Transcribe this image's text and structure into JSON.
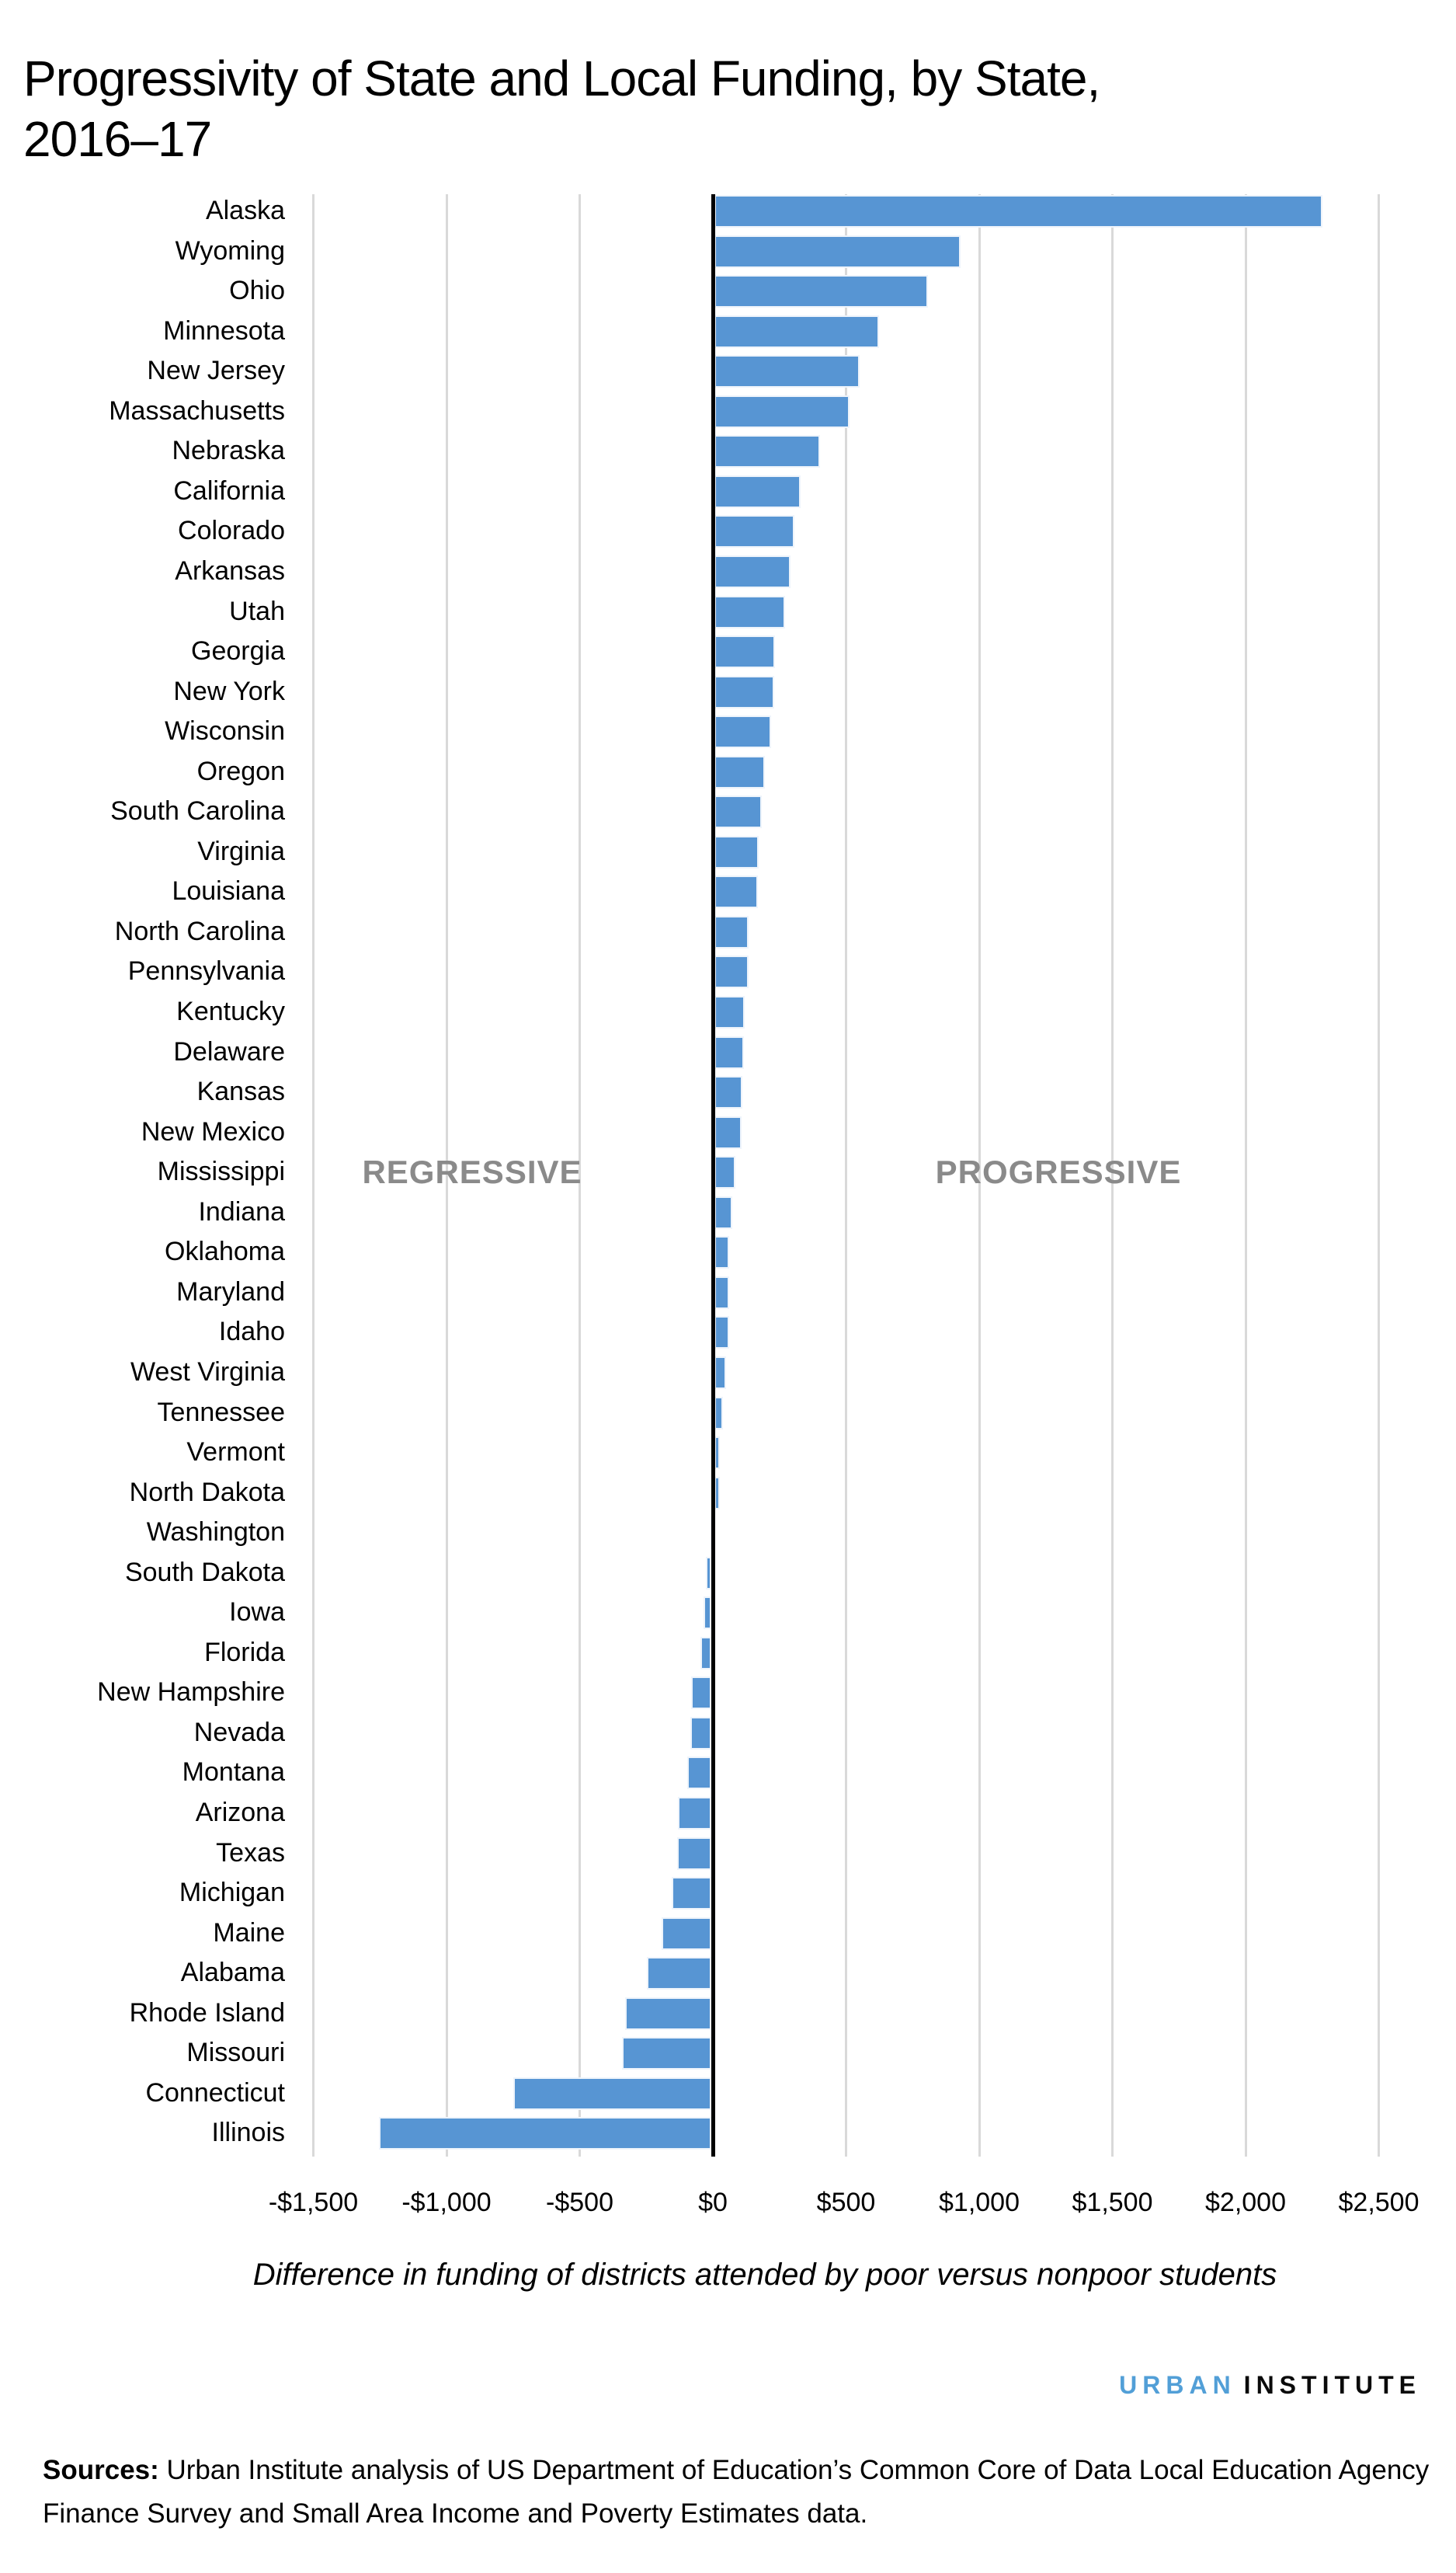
{
  "title": {
    "line1": "Progressivity of State and Local Funding, by State,",
    "line2": "2016–17"
  },
  "region_labels": {
    "regressive": "REGRESSIVE",
    "progressive": "PROGRESSIVE"
  },
  "chart_data": {
    "type": "bar",
    "orientation": "horizontal",
    "title": "Progressivity of State and Local Funding, by State, 2016–17",
    "xlabel": "Difference in funding of districts attended by poor versus nonpoor students",
    "ylabel": "",
    "xlim": [
      -1590,
      2760
    ],
    "grid": true,
    "bar_color": "#5795d3",
    "gridline_color": "#d9d9d9",
    "zero_axis_color": "#000000",
    "x_ticks": [
      {
        "value": -1500,
        "label": "-$1,500"
      },
      {
        "value": -1000,
        "label": "-$1,000"
      },
      {
        "value": -500,
        "label": "-$500"
      },
      {
        "value": 0,
        "label": "$0"
      },
      {
        "value": 500,
        "label": "$500"
      },
      {
        "value": 1000,
        "label": "$1,000"
      },
      {
        "value": 1500,
        "label": "$1,500"
      },
      {
        "value": 2000,
        "label": "$2,000"
      },
      {
        "value": 2500,
        "label": "$2,500"
      }
    ],
    "categories": [
      "Alaska",
      "Wyoming",
      "Ohio",
      "Minnesota",
      "New Jersey",
      "Massachusetts",
      "Nebraska",
      "California",
      "Colorado",
      "Arkansas",
      "Utah",
      "Georgia",
      "New York",
      "Wisconsin",
      "Oregon",
      "South Carolina",
      "Virginia",
      "Louisiana",
      "North Carolina",
      "Pennsylvania",
      "Kentucky",
      "Delaware",
      "Kansas",
      "New Mexico",
      "Mississippi",
      "Indiana",
      "Oklahoma",
      "Maryland",
      "Idaho",
      "West Virginia",
      "Tennessee",
      "Vermont",
      "North Dakota",
      "Washington",
      "South Dakota",
      "Iowa",
      "Florida",
      "New Hampshire",
      "Nevada",
      "Montana",
      "Arizona",
      "Texas",
      "Michigan",
      "Maine",
      "Alabama",
      "Rhode Island",
      "Missouri",
      "Connecticut",
      "Illinois"
    ],
    "values": [
      2282,
      923,
      801,
      619,
      545,
      506,
      397,
      324,
      300,
      287,
      264,
      226,
      224,
      214,
      190,
      178,
      166,
      164,
      129,
      127,
      113,
      112,
      104,
      103,
      80,
      68,
      56,
      55,
      54,
      44,
      32,
      21,
      20,
      -2,
      -20,
      -29,
      -42,
      -76,
      -79,
      -89,
      -125,
      -127,
      -148,
      -188,
      -241,
      -324,
      -336,
      -743,
      -1247
    ]
  },
  "footer": {
    "logo_word1": "URBAN",
    "logo_word2": "INSTITUTE",
    "sources_label": "Sources:",
    "sources_text": " Urban Institute analysis of US Department of Education’s Common Core of Data Local Education Agency Finance Survey and Small Area Income and Poverty Estimates data."
  }
}
